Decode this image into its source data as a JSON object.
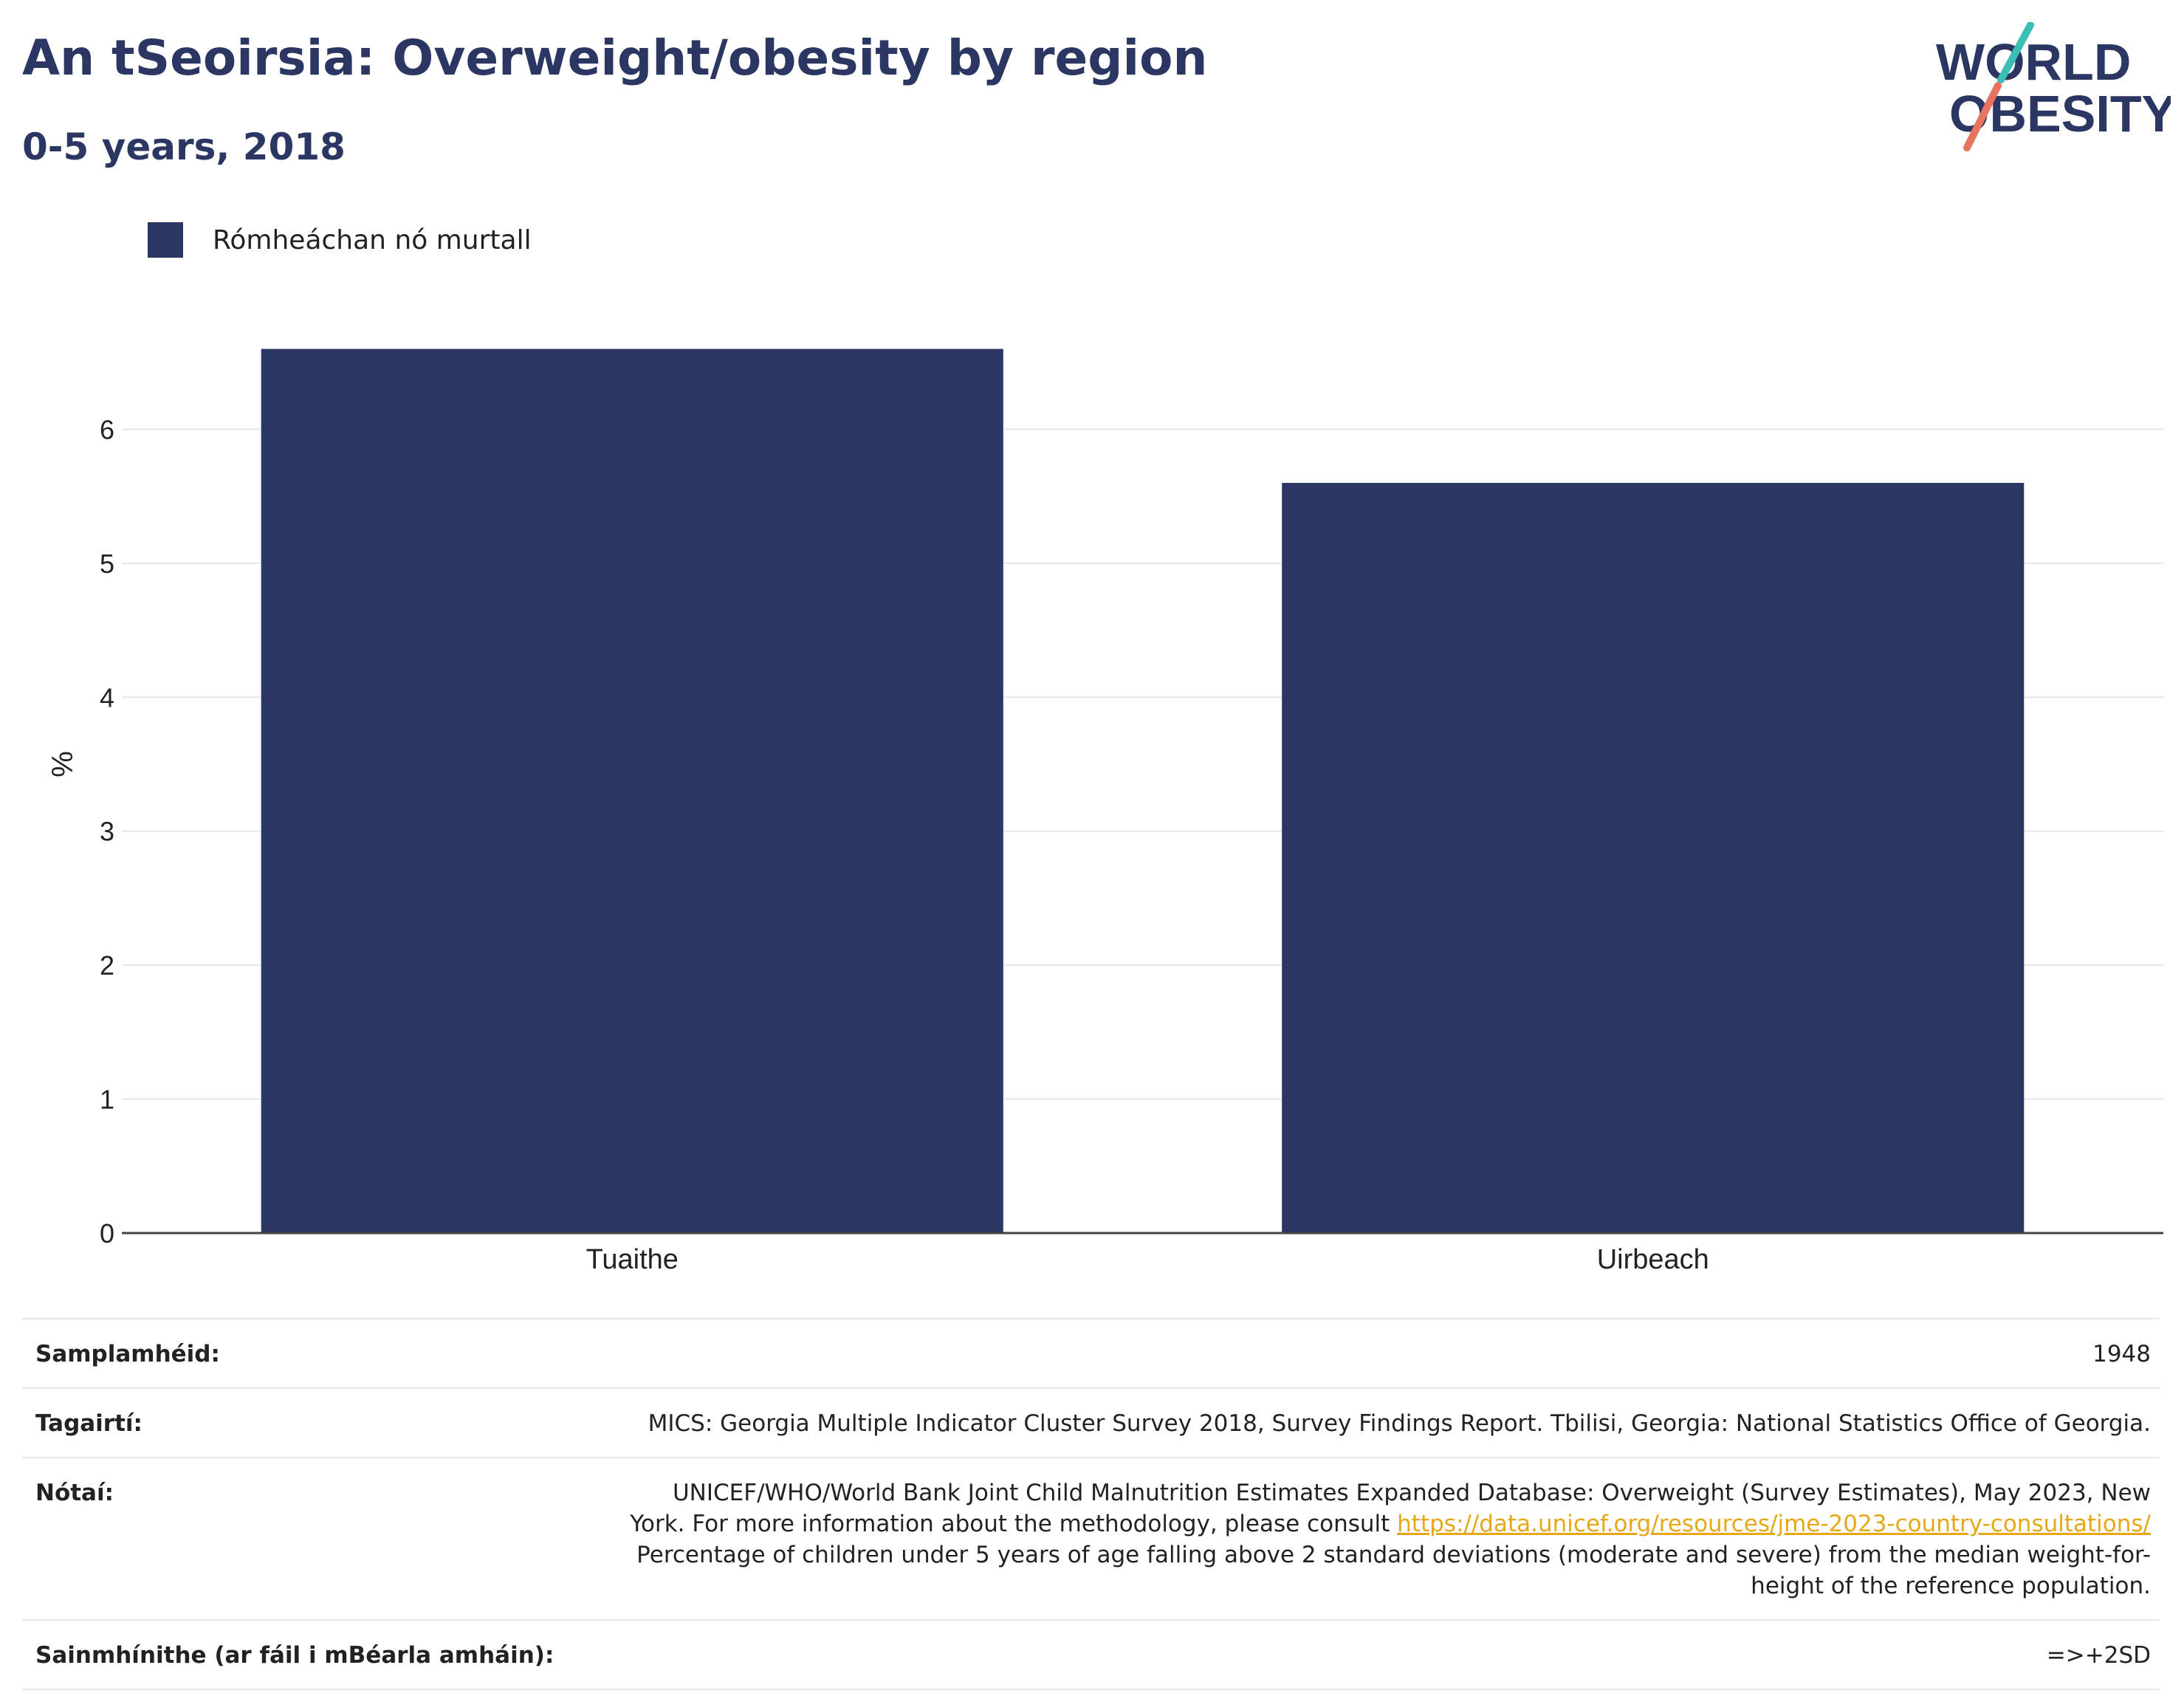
{
  "header": {
    "title": "An tSeoirsia: Overweight/obesity by region",
    "subtitle": "0-5 years, 2018"
  },
  "logo": {
    "line1": "WORLD",
    "line2": "OBESITY",
    "text_color": "#2b3662",
    "slash_top_color": "#3bbfb4",
    "slash_bottom_color": "#e8735e"
  },
  "legend": {
    "label": "Rómheáchan nó murtall",
    "color": "#2b3662"
  },
  "chart_data": {
    "type": "bar",
    "categories": [
      "Tuaithe",
      "Uirbeach"
    ],
    "series": [
      {
        "name": "Rómheáchan nó murtall",
        "values": [
          6.6,
          5.6
        ],
        "color": "#2b3662"
      }
    ],
    "ylabel": "%",
    "xlabel": "",
    "ylim": [
      0,
      7
    ],
    "yticks": [
      0,
      1,
      2,
      3,
      4,
      5,
      6
    ],
    "grid": true,
    "legend_position": "top-left"
  },
  "info": {
    "sample_label": "Samplamhéid:",
    "sample_value": "1948",
    "references_label": "Tagairtí:",
    "references_value": "MICS: Georgia Multiple Indicator Cluster Survey 2018, Survey Findings Report. Tbilisi, Georgia: National Statistics Office of Georgia.",
    "notes_label": "Nótaí:",
    "notes_text_1": "UNICEF/WHO/World Bank Joint Child Malnutrition Estimates Expanded Database: Overweight (Survey Estimates), May 2023, New York. For more information about the methodology, please consult ",
    "notes_link": "https://data.unicef.org/resources/jme-2023-country-consultations/",
    "notes_text_2": "Percentage of children under 5 years of age falling above 2 standard deviations (moderate and severe) from the median weight-for-height of the reference population.",
    "definitions_label": "Sainmhínithe (ar fáil i mBéarla amháin):",
    "definitions_value": "=>+2SD"
  }
}
